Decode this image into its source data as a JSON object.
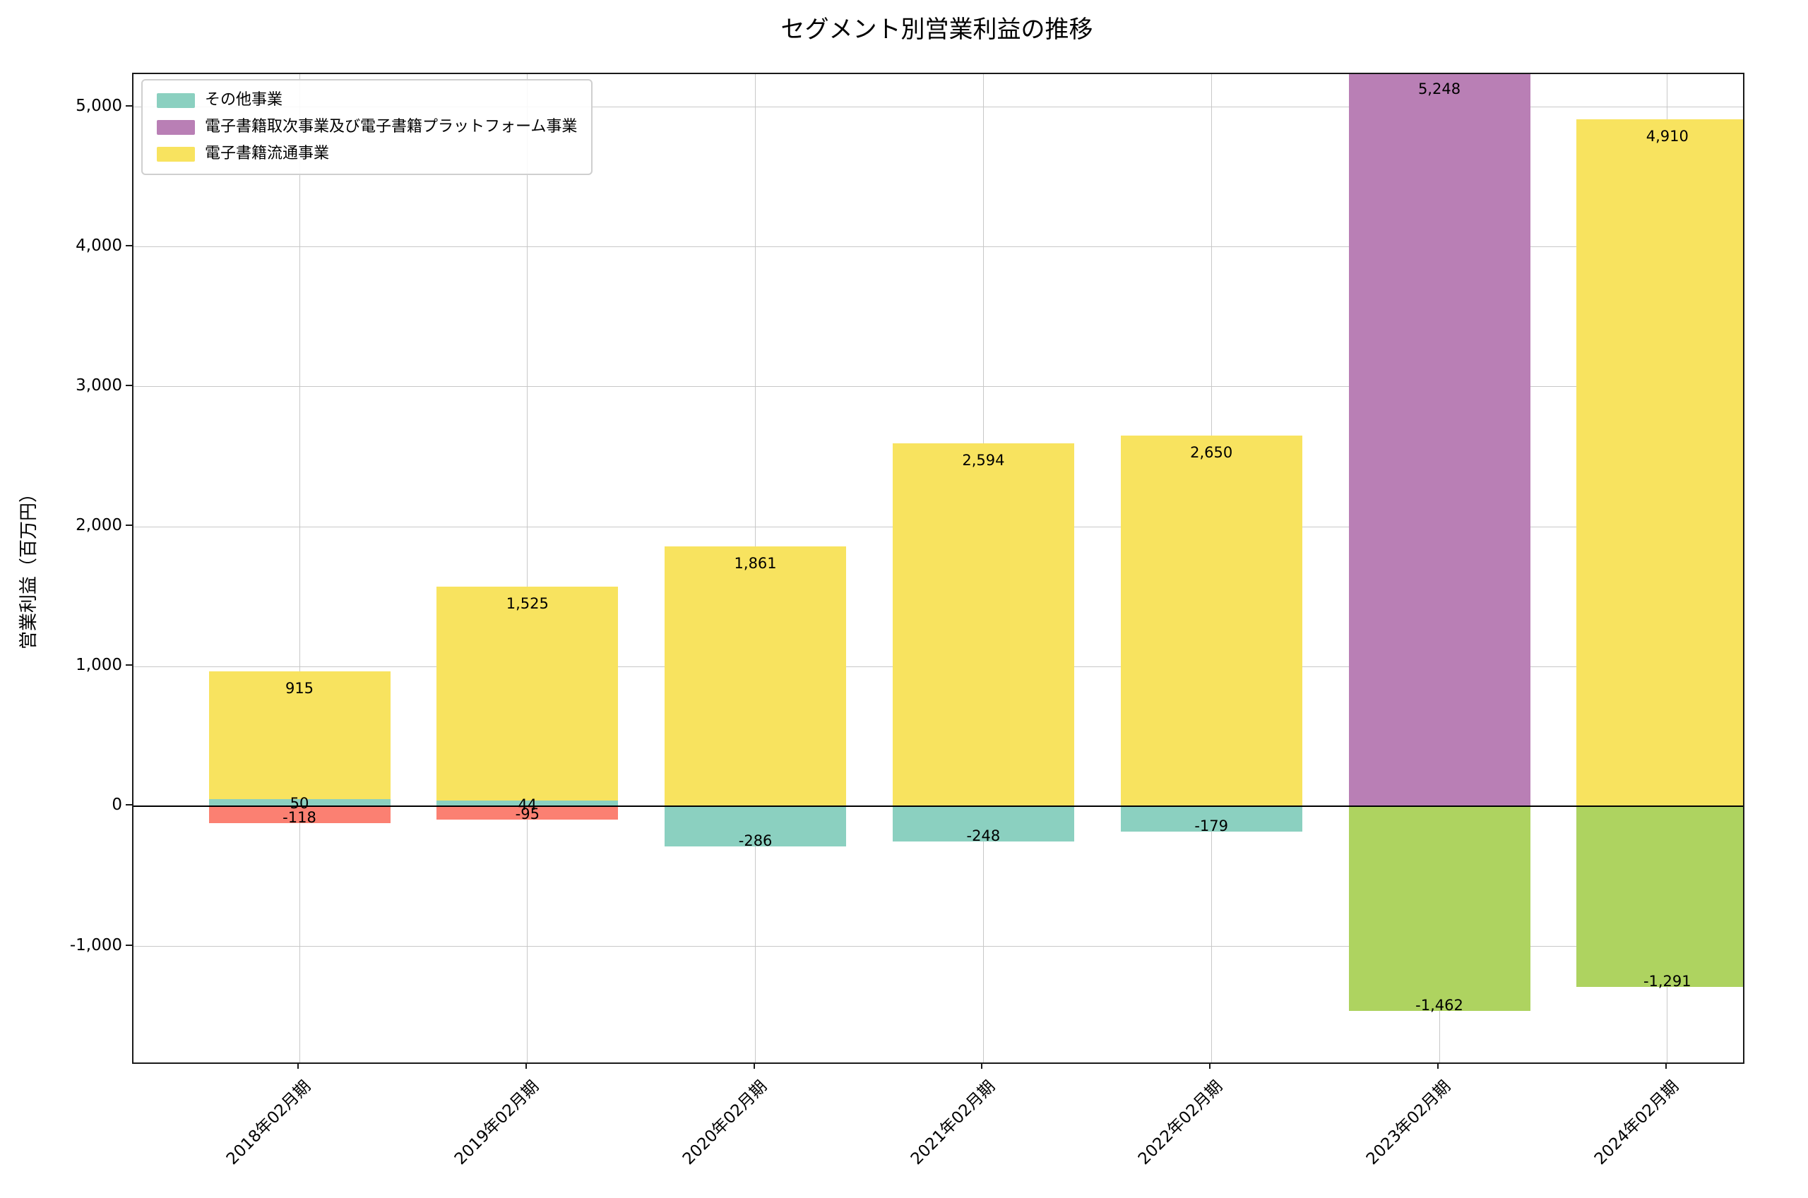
{
  "title": "セグメント別営業利益の推移",
  "chart_data": {
    "type": "bar",
    "stacked": true,
    "title": "セグメント別営業利益の推移",
    "ylabel": "営業利益（百万円）",
    "xlabel": "",
    "categories": [
      "2018年02月期",
      "2019年02月期",
      "2020年02月期",
      "2021年02月期",
      "2022年02月期",
      "2023年02月期",
      "2024年02月期"
    ],
    "series": [
      {
        "name": "その他事業",
        "color": "#8bd0c0",
        "in_legend": true,
        "values": [
          50,
          44,
          -286,
          -248,
          -179,
          null,
          null
        ]
      },
      {
        "name": "電子書籍取次事業及び電子書籍プラットフォーム事業",
        "color": "#b97fb5",
        "in_legend": true,
        "values": [
          null,
          null,
          null,
          null,
          null,
          5248,
          null
        ]
      },
      {
        "name": "電子書籍流通事業",
        "color": "#f8e35f",
        "in_legend": true,
        "values": [
          915,
          1525,
          1861,
          2594,
          2650,
          null,
          4910
        ]
      },
      {
        "name": "red-segment",
        "color": "#fb8072",
        "in_legend": false,
        "values": [
          -118,
          -95,
          null,
          null,
          null,
          null,
          null
        ]
      },
      {
        "name": "green-segment",
        "color": "#aed360",
        "in_legend": false,
        "values": [
          null,
          null,
          null,
          null,
          null,
          -1462,
          -1291
        ]
      }
    ],
    "yticks": [
      -1000,
      0,
      1000,
      2000,
      3000,
      4000,
      5000
    ],
    "ylim": [
      -1830,
      5235
    ],
    "grid": true,
    "zero_line": true,
    "bar_labels": true,
    "legend_position": "upper left",
    "legend_entries": [
      {
        "label": "その他事業",
        "color": "#8bd0c0"
      },
      {
        "label": "電子書籍取次事業及び電子書籍プラットフォーム事業",
        "color": "#b97fb5"
      },
      {
        "label": "電子書籍流通事業",
        "color": "#f8e35f"
      }
    ]
  }
}
